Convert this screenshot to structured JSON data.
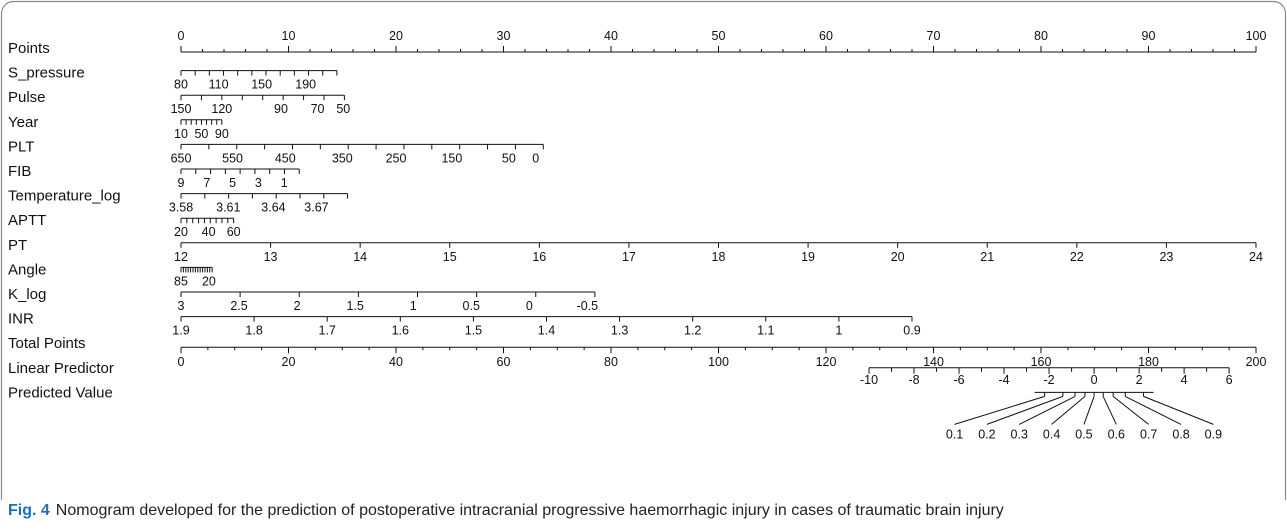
{
  "chart_data": {
    "type": "nomogram",
    "rows": [
      {
        "label": "Points",
        "type": "scale",
        "min": 0,
        "max": 100,
        "major_ticks": [
          0,
          10,
          20,
          30,
          40,
          50,
          60,
          70,
          80,
          90,
          100
        ],
        "labels": [
          "0",
          "10",
          "20",
          "30",
          "40",
          "50",
          "60",
          "70",
          "80",
          "90",
          "100"
        ],
        "label_side": "above"
      },
      {
        "label": "S_pressure",
        "type": "axis",
        "points_range": [
          0,
          14.5
        ],
        "n_ticks": 12,
        "labels": [
          "80",
          "110",
          "150",
          "190"
        ],
        "label_points": [
          0,
          3.5,
          7.5,
          11.6
        ],
        "label_side": "below"
      },
      {
        "label": "Pulse",
        "type": "axis",
        "points_range": [
          0,
          15.2
        ],
        "n_ticks": 9,
        "labels": [
          "150",
          "120",
          "90",
          "70",
          "50"
        ],
        "label_points": [
          0,
          3.8,
          9.3,
          12.7,
          15.1
        ],
        "label_side": "below"
      },
      {
        "label": "Year",
        "type": "axis",
        "points_range": [
          0,
          3.8
        ],
        "n_ticks": 9,
        "labels": [
          "10",
          "50",
          "90"
        ],
        "label_points": [
          0,
          3.1,
          6.2
        ],
        "label_side": "below"
      },
      {
        "label": "PLT",
        "type": "axis",
        "points_range": [
          0,
          33.7
        ],
        "n_ticks": 14,
        "labels": [
          "650",
          "550",
          "450",
          "350",
          "250",
          "150",
          "50",
          "0"
        ],
        "label_points": [
          0,
          4.8,
          9.7,
          15.0,
          20.0,
          25.2,
          30.5,
          33.0
        ],
        "label_side": "below"
      },
      {
        "label": "FIB",
        "type": "axis",
        "points_range": [
          0,
          11.0
        ],
        "n_ticks": 9,
        "labels": [
          "9",
          "7",
          "5",
          "3",
          "1"
        ],
        "label_points": [
          0,
          2.4,
          4.8,
          7.2,
          9.6
        ],
        "label_side": "below"
      },
      {
        "label": "Temperature_log",
        "type": "axis",
        "points_range": [
          0,
          15.5
        ],
        "n_ticks": 8,
        "labels": [
          "3.58",
          "3.61",
          "3.64",
          "3.67"
        ],
        "label_points": [
          0,
          4.4,
          8.6,
          12.6
        ],
        "label_side": "below"
      },
      {
        "label": "APTT",
        "type": "axis",
        "points_range": [
          0,
          4.9
        ],
        "n_ticks": 10,
        "labels": [
          "20",
          "40",
          "60"
        ],
        "label_points": [
          0,
          3.3,
          6.3
        ],
        "label_side": "below"
      },
      {
        "label": "PT",
        "type": "axis",
        "points_range": [
          0,
          100
        ],
        "n_ticks": 13,
        "labels": [
          "12",
          "13",
          "14",
          "15",
          "16",
          "17",
          "18",
          "19",
          "20",
          "21",
          "22",
          "23",
          "24"
        ],
        "label_points": [
          0,
          8.33,
          16.67,
          25,
          33.33,
          41.67,
          50,
          58.33,
          66.67,
          75,
          83.33,
          91.67,
          100
        ],
        "label_side": "below"
      },
      {
        "label": "Angle",
        "type": "axis",
        "points_range": [
          0,
          2.9
        ],
        "n_ticks": 14,
        "labels": [
          "85",
          "20"
        ],
        "label_points": [
          0,
          2.6
        ],
        "label_side": "below"
      },
      {
        "label": "K_log",
        "type": "axis",
        "points_range": [
          0,
          38.5
        ],
        "n_ticks": 8,
        "labels": [
          "3",
          "2.5",
          "2",
          "1.5",
          "1",
          "0.5",
          "0",
          "-0.5"
        ],
        "label_points": [
          0,
          5.4,
          10.8,
          16.2,
          21.6,
          27.0,
          32.4,
          37.8
        ],
        "label_side": "below"
      },
      {
        "label": "INR",
        "type": "axis",
        "points_range": [
          0,
          68.0
        ],
        "n_ticks": 11,
        "labels": [
          "1.9",
          "1.8",
          "1.7",
          "1.6",
          "1.5",
          "1.4",
          "1.3",
          "1.2",
          "1.1",
          "1",
          "0.9"
        ],
        "label_points": [
          0,
          6.8,
          13.6,
          20.4,
          27.2,
          34.0,
          40.8,
          47.6,
          54.4,
          61.2,
          68.0
        ],
        "label_side": "below"
      },
      {
        "label": "Total Points",
        "type": "scale",
        "min": 0,
        "max": 200,
        "major_ticks": [
          0,
          20,
          40,
          60,
          80,
          100,
          120,
          140,
          160,
          180,
          200
        ],
        "labels": [
          "0",
          "20",
          "40",
          "60",
          "80",
          "100",
          "120",
          "140",
          "160",
          "180",
          "200"
        ],
        "label_side": "below"
      },
      {
        "label": "Linear Predictor",
        "type": "axis",
        "total_points_range": [
          128,
          195
        ],
        "labels": [
          "-10",
          "-8",
          "-6",
          "-4",
          "-2",
          "0",
          "2",
          "4",
          "6"
        ],
        "label_side": "below"
      },
      {
        "label": "Predicted Value",
        "type": "probability",
        "labels": [
          "0.1",
          "0.2",
          "0.3",
          "0.4",
          "0.5",
          "0.6",
          "0.7",
          "0.8",
          "0.9"
        ],
        "linear_predictor_values": [
          -2.197,
          -1.386,
          -0.847,
          -0.405,
          0,
          0.405,
          0.847,
          1.386,
          2.197
        ]
      }
    ]
  },
  "caption": {
    "fig_label": "Fig. 4",
    "text": "Nomogram developed for the prediction of postoperative intracranial progressive haemorrhagic injury in cases of traumatic brain injury"
  }
}
